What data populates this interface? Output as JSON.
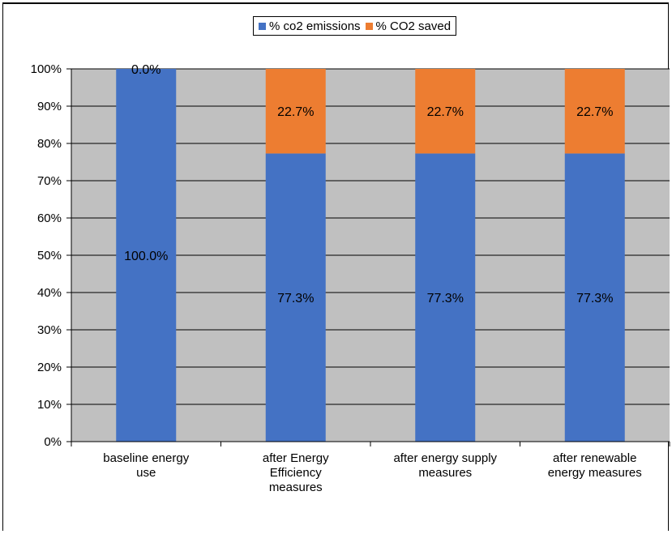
{
  "chart_data": {
    "type": "bar",
    "stacked": true,
    "categories": [
      [
        "baseline energy",
        "use"
      ],
      [
        "after Energy",
        "Efficiency",
        "measures"
      ],
      [
        "after energy supply",
        "measures"
      ],
      [
        "after renewable",
        "energy measures"
      ]
    ],
    "series": [
      {
        "name": "% co2 emissions",
        "color": "#4472C4",
        "values": [
          100.0,
          77.3,
          77.3,
          77.3
        ],
        "labels": [
          "100.0%",
          "77.3%",
          "77.3%",
          "77.3%"
        ]
      },
      {
        "name": "% CO2 saved",
        "color": "#ED7D31",
        "values": [
          0.0,
          22.7,
          22.7,
          22.7
        ],
        "labels": [
          "0.0%",
          "22.7%",
          "22.7%",
          "22.7%"
        ]
      }
    ],
    "yticks": [
      "0%",
      "10%",
      "20%",
      "30%",
      "40%",
      "50%",
      "60%",
      "70%",
      "80%",
      "90%",
      "100%"
    ],
    "ylim": [
      0,
      100
    ],
    "grid": true,
    "plot_background": "#C0C0C0",
    "legend_position": "top-center"
  }
}
